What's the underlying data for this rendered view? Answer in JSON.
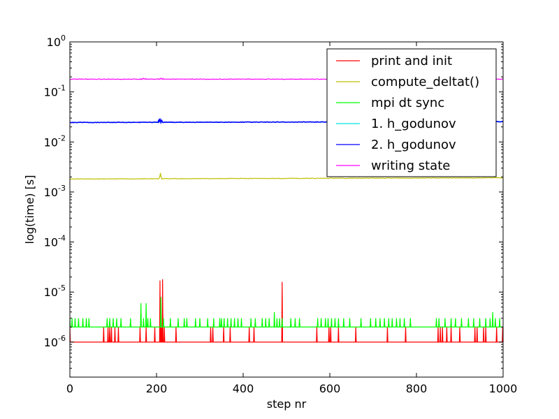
{
  "chart_data": {
    "type": "line",
    "xlabel": "step nr",
    "ylabel": "log(time) [s]",
    "xlim": [
      0,
      1000
    ],
    "ylim_log10": [
      -6.7,
      0
    ],
    "y_scale": "log",
    "grid": false,
    "legend_position": "top-right",
    "x_ticks": [
      {
        "value": 0,
        "label": "0"
      },
      {
        "value": 200,
        "label": "200"
      },
      {
        "value": 400,
        "label": "400"
      },
      {
        "value": 600,
        "label": "600"
      },
      {
        "value": 800,
        "label": "800"
      },
      {
        "value": 1000,
        "label": "1000"
      }
    ],
    "y_ticks": [
      {
        "exp": 0,
        "base": "10",
        "sup": "0"
      },
      {
        "exp": -1,
        "base": "10",
        "sup": "-1"
      },
      {
        "exp": -2,
        "base": "10",
        "sup": "-2"
      },
      {
        "exp": -3,
        "base": "10",
        "sup": "-3"
      },
      {
        "exp": -4,
        "base": "10",
        "sup": "-4"
      },
      {
        "exp": -5,
        "base": "10",
        "sup": "-5"
      },
      {
        "exp": -6,
        "base": "10",
        "sup": "-6"
      }
    ],
    "series": [
      {
        "name": "print and init",
        "color": "#ff0000",
        "baseline": 1e-06,
        "spikes": [
          [
            0,
            2e-06
          ],
          [
            78,
            2e-06
          ],
          [
            88,
            2e-06
          ],
          [
            92,
            2e-06
          ],
          [
            96,
            2e-06
          ],
          [
            104,
            2e-06
          ],
          [
            112,
            2e-06
          ],
          [
            162,
            2e-06
          ],
          [
            176,
            2e-06
          ],
          [
            196,
            2e-06
          ],
          [
            208,
            1.7e-05
          ],
          [
            211,
            2e-06
          ],
          [
            214,
            1.8e-05
          ],
          [
            218,
            2e-06
          ],
          [
            245,
            2e-06
          ],
          [
            325,
            2e-06
          ],
          [
            330,
            2e-06
          ],
          [
            355,
            2e-06
          ],
          [
            370,
            2e-06
          ],
          [
            414,
            2e-06
          ],
          [
            425,
            2e-06
          ],
          [
            490,
            1.6e-05
          ],
          [
            570,
            2e-06
          ],
          [
            598,
            2e-06
          ],
          [
            602,
            2e-06
          ],
          [
            620,
            2e-06
          ],
          [
            660,
            2e-06
          ],
          [
            733,
            2e-06
          ],
          [
            775,
            2e-06
          ],
          [
            850,
            2e-06
          ],
          [
            855,
            2e-06
          ],
          [
            860,
            2e-06
          ],
          [
            870,
            2e-06
          ],
          [
            880,
            2e-06
          ],
          [
            900,
            2e-06
          ],
          [
            935,
            2e-06
          ],
          [
            940,
            2e-06
          ],
          [
            955,
            2e-06
          ],
          [
            960,
            2e-06
          ],
          [
            985,
            2e-06
          ],
          [
            999,
            2e-06
          ]
        ]
      },
      {
        "name": "compute_deltat()",
        "color": "#bfbf00",
        "start": 0.00182,
        "end": 0.00192,
        "spikes": [
          [
            208,
            0.0021
          ],
          [
            209,
            0.0024
          ],
          [
            210,
            0.0021
          ]
        ]
      },
      {
        "name": "mpi dt sync",
        "color": "#00ff00",
        "baseline": 2e-06,
        "spikes": [
          [
            0,
            3e-06
          ],
          [
            5,
            3e-06
          ],
          [
            12,
            3e-06
          ],
          [
            20,
            3e-06
          ],
          [
            30,
            3e-06
          ],
          [
            38,
            3e-06
          ],
          [
            44,
            3e-06
          ],
          [
            86,
            3e-06
          ],
          [
            92,
            3e-06
          ],
          [
            100,
            3e-06
          ],
          [
            108,
            3e-06
          ],
          [
            118,
            3e-06
          ],
          [
            140,
            3e-06
          ],
          [
            164,
            6e-06
          ],
          [
            170,
            3e-06
          ],
          [
            176,
            6e-06
          ],
          [
            180,
            3e-06
          ],
          [
            186,
            3e-06
          ],
          [
            210,
            8e-06
          ],
          [
            216,
            3e-06
          ],
          [
            232,
            3e-06
          ],
          [
            250,
            3e-06
          ],
          [
            264,
            3e-06
          ],
          [
            270,
            3e-06
          ],
          [
            290,
            3e-06
          ],
          [
            300,
            3e-06
          ],
          [
            318,
            3e-06
          ],
          [
            332,
            3e-06
          ],
          [
            346,
            3e-06
          ],
          [
            350,
            3e-06
          ],
          [
            356,
            3e-06
          ],
          [
            364,
            3e-06
          ],
          [
            372,
            3e-06
          ],
          [
            380,
            3e-06
          ],
          [
            388,
            3e-06
          ],
          [
            396,
            3e-06
          ],
          [
            418,
            3e-06
          ],
          [
            428,
            3e-06
          ],
          [
            444,
            3e-06
          ],
          [
            452,
            3e-06
          ],
          [
            460,
            3e-06
          ],
          [
            472,
            4e-06
          ],
          [
            478,
            3e-06
          ],
          [
            484,
            3e-06
          ],
          [
            490,
            3e-06
          ],
          [
            510,
            3e-06
          ],
          [
            520,
            3e-06
          ],
          [
            530,
            3e-06
          ],
          [
            572,
            3e-06
          ],
          [
            580,
            3e-06
          ],
          [
            590,
            3e-06
          ],
          [
            596,
            3e-06
          ],
          [
            604,
            3e-06
          ],
          [
            612,
            3e-06
          ],
          [
            620,
            3e-06
          ],
          [
            632,
            3e-06
          ],
          [
            646,
            3e-06
          ],
          [
            672,
            3e-06
          ],
          [
            694,
            3e-06
          ],
          [
            706,
            3e-06
          ],
          [
            716,
            3e-06
          ],
          [
            726,
            3e-06
          ],
          [
            736,
            3e-06
          ],
          [
            744,
            3e-06
          ],
          [
            754,
            3e-06
          ],
          [
            762,
            3e-06
          ],
          [
            772,
            3e-06
          ],
          [
            786,
            3e-06
          ],
          [
            846,
            3e-06
          ],
          [
            852,
            3e-06
          ],
          [
            866,
            3e-06
          ],
          [
            880,
            3e-06
          ],
          [
            890,
            3e-06
          ],
          [
            904,
            3e-06
          ],
          [
            920,
            3e-06
          ],
          [
            932,
            3e-06
          ],
          [
            946,
            3e-06
          ],
          [
            960,
            3e-06
          ],
          [
            970,
            3e-06
          ],
          [
            976,
            4e-06
          ],
          [
            982,
            3e-06
          ],
          [
            992,
            3e-06
          ]
        ]
      },
      {
        "name": "1. h_godunov",
        "color": "#00e5e5",
        "start": 0.0245,
        "end": 0.0255,
        "spikes": [
          [
            205,
            0.028
          ],
          [
            208,
            0.0295
          ],
          [
            212,
            0.027
          ]
        ]
      },
      {
        "name": "2. h_godunov",
        "color": "#0000ff",
        "start": 0.0245,
        "end": 0.0255,
        "spikes": [
          [
            205,
            0.028
          ],
          [
            208,
            0.0295
          ],
          [
            212,
            0.027
          ]
        ]
      },
      {
        "name": "writing state",
        "color": "#ff00ff",
        "start": 0.18,
        "end": 0.18,
        "spikes": [
          [
            165,
            0.184
          ],
          [
            170,
            0.188
          ],
          [
            175,
            0.184
          ],
          [
            205,
            0.184
          ],
          [
            210,
            0.188
          ],
          [
            215,
            0.186
          ]
        ]
      }
    ]
  }
}
